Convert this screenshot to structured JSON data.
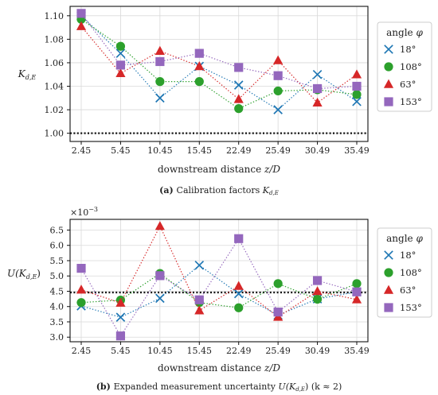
{
  "chart_data": [
    {
      "type": "line",
      "panel_label": "(a)",
      "caption": "Calibration factors",
      "ylabel_main": "K",
      "ylabel_sub": "d,E",
      "xlabel": "downstream distance z/D",
      "categories": [
        "2.45",
        "5.45",
        "10.45",
        "15.45",
        "22.49",
        "25.49",
        "30.49",
        "35.49"
      ],
      "yticks": [
        "1.00",
        "1.02",
        "1.04",
        "1.06",
        "1.08",
        "1.10"
      ],
      "ylim": [
        0.993,
        1.108
      ],
      "reference_line": 1.0,
      "legend_title": "angle φ",
      "legend_position": "outside-right",
      "grid": true,
      "series": [
        {
          "name": "18°",
          "marker": "x",
          "color": "#1f77b4",
          "values": [
            1.1,
            1.068,
            1.03,
            1.057,
            1.041,
            1.02,
            1.05,
            1.027
          ]
        },
        {
          "name": "108°",
          "marker": "circle",
          "color": "#2ca02c",
          "values": [
            1.097,
            1.074,
            1.044,
            1.044,
            1.021,
            1.036,
            1.037,
            1.033
          ]
        },
        {
          "name": "63°",
          "marker": "triangle",
          "color": "#d62728",
          "values": [
            1.091,
            1.051,
            1.07,
            1.057,
            1.029,
            1.062,
            1.026,
            1.05
          ]
        },
        {
          "name": "153°",
          "marker": "square",
          "color": "#9467bd",
          "values": [
            1.102,
            1.058,
            1.061,
            1.068,
            1.056,
            1.049,
            1.038,
            1.04
          ]
        }
      ]
    },
    {
      "type": "line",
      "panel_label": "(b)",
      "caption": "Expanded measurement uncertainty",
      "caption_extra": "(k ≈ 2)",
      "ylabel_main": "U(K",
      "ylabel_sub": "d,E",
      "ylabel_end": ")",
      "xlabel": "downstream distance z/D",
      "scale_note": "×10",
      "scale_exp": "−3",
      "categories": [
        "2.45",
        "5.45",
        "10.45",
        "15.45",
        "22.49",
        "25.49",
        "30.49",
        "35.49"
      ],
      "yticks": [
        "3.0",
        "3.5",
        "4.0",
        "4.5",
        "5.0",
        "5.5",
        "6.0",
        "6.5"
      ],
      "ylim": [
        2.85,
        6.85
      ],
      "reference_line": 4.46,
      "legend_title": "angle φ",
      "legend_position": "outside-right",
      "grid": true,
      "series": [
        {
          "name": "18°",
          "marker": "x",
          "color": "#1f77b4",
          "values": [
            4.02,
            3.65,
            4.27,
            5.35,
            4.42,
            3.72,
            4.25,
            4.48
          ]
        },
        {
          "name": "108°",
          "marker": "circle",
          "color": "#2ca02c",
          "values": [
            4.13,
            4.21,
            5.08,
            4.13,
            3.96,
            4.75,
            4.24,
            4.75
          ]
        },
        {
          "name": "63°",
          "marker": "triangle",
          "color": "#d62728",
          "values": [
            4.55,
            4.12,
            6.63,
            3.87,
            4.67,
            3.66,
            4.5,
            4.23
          ]
        },
        {
          "name": "153°",
          "marker": "square",
          "color": "#9467bd",
          "values": [
            5.25,
            3.04,
            5.01,
            4.22,
            6.22,
            3.82,
            4.85,
            4.48
          ]
        }
      ]
    }
  ]
}
